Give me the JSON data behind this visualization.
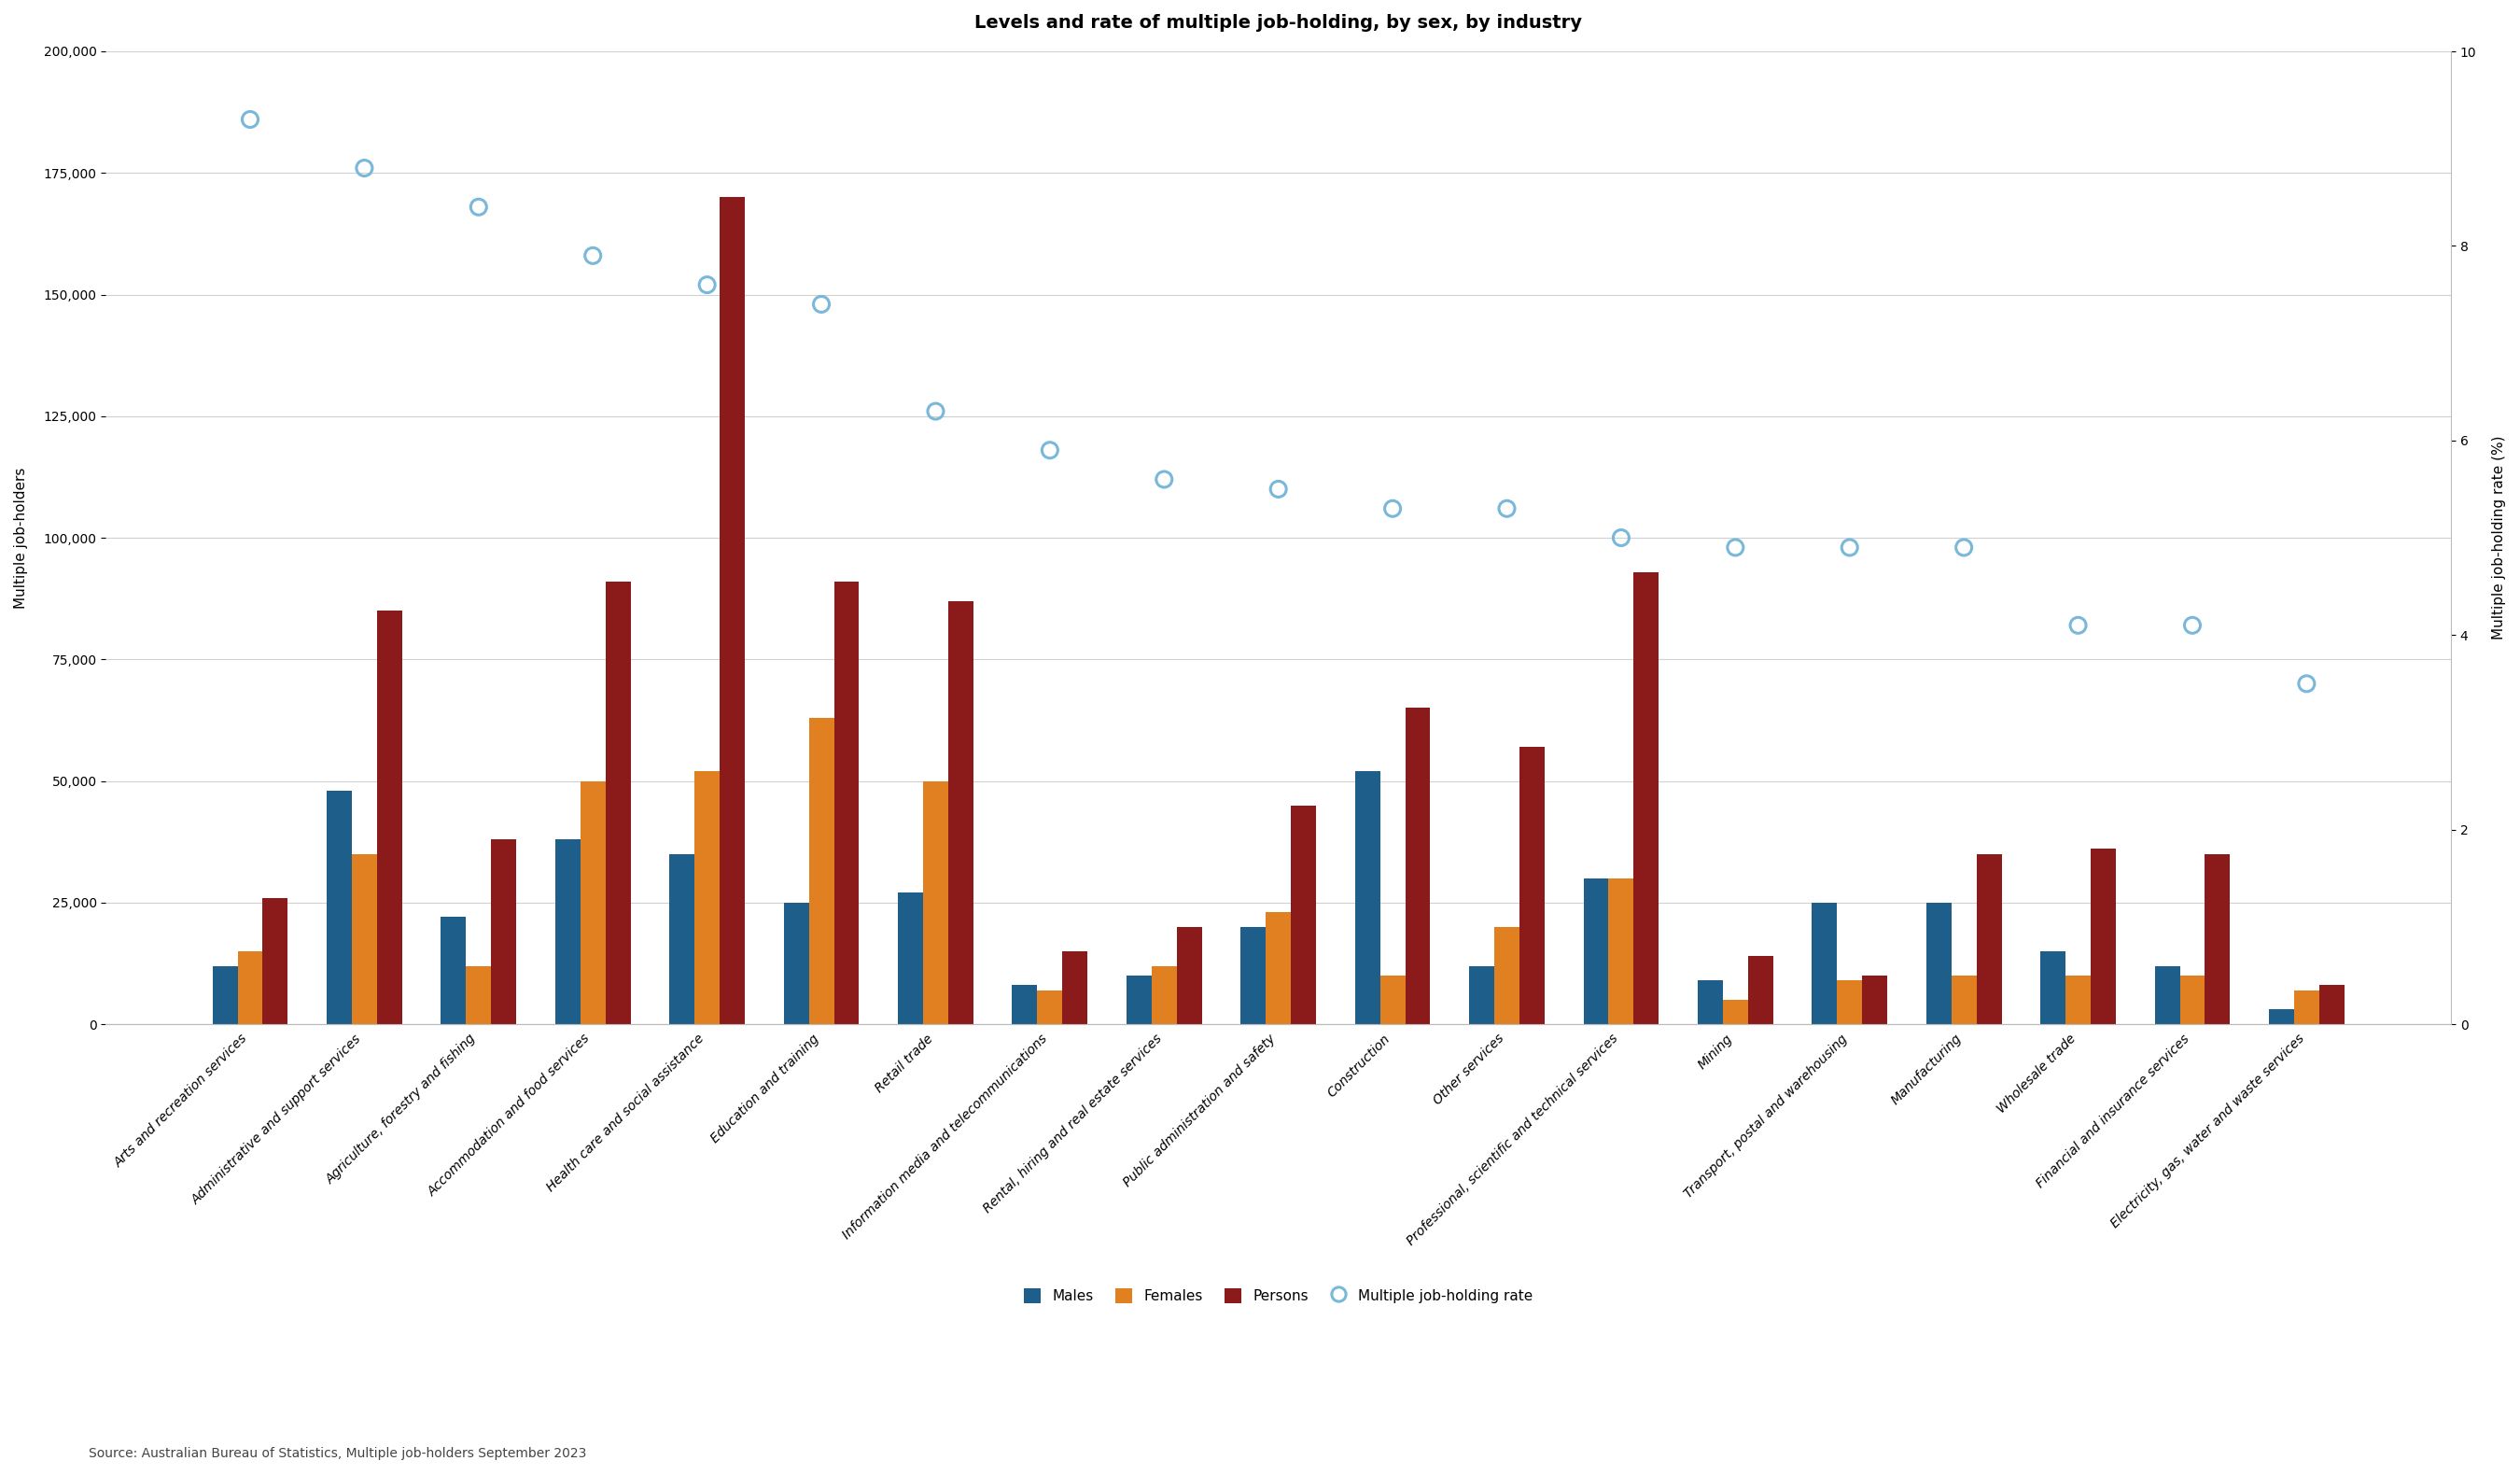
{
  "title": "Levels and rate of multiple job-holding, by sex, by industry",
  "categories": [
    "Arts and recreation services",
    "Administrative and support services",
    "Agriculture, forestry and fishing",
    "Accommodation and food services",
    "Health care and social assistance",
    "Education and training",
    "Retail trade",
    "Information media and telecommunications",
    "Rental, hiring and real estate services",
    "Public administration and safety",
    "Construction",
    "Other services",
    "Professional, scientific and technical services",
    "Mining",
    "Transport, postal and warehousing",
    "Manufacturing",
    "Wholesale trade",
    "Financial and insurance services",
    "Electricity, gas, water and waste services"
  ],
  "males": [
    12000,
    48000,
    22000,
    38000,
    35000,
    25000,
    27000,
    8000,
    10000,
    20000,
    52000,
    12000,
    30000,
    9000,
    25000,
    25000,
    15000,
    12000,
    3000
  ],
  "females": [
    15000,
    35000,
    12000,
    50000,
    52000,
    63000,
    50000,
    7000,
    12000,
    23000,
    10000,
    20000,
    30000,
    5000,
    9000,
    10000,
    10000,
    10000,
    7000
  ],
  "persons": [
    26000,
    85000,
    38000,
    91000,
    170000,
    91000,
    87000,
    15000,
    20000,
    45000,
    65000,
    57000,
    93000,
    14000,
    10000,
    35000,
    36000,
    35000,
    8000
  ],
  "rate": [
    9.3,
    8.8,
    8.4,
    7.9,
    7.6,
    7.4,
    6.3,
    5.9,
    5.6,
    5.5,
    5.3,
    5.3,
    5.0,
    4.9,
    4.9,
    4.9,
    4.1,
    4.1,
    3.5
  ],
  "ylabel_left": "Multiple job-holders",
  "ylabel_right": "Multiple job-holding rate (%)",
  "ylim_left": [
    0,
    200000
  ],
  "ylim_right": [
    0,
    10
  ],
  "source": "Source: Australian Bureau of Statistics, Multiple job-holders September 2023",
  "color_males": "#1d5f8a",
  "color_females": "#e08020",
  "color_persons": "#8b1a1a",
  "color_rate": "#7ab8d9",
  "color_bg": "#ffffff",
  "color_grid": "#d0d0d0",
  "bar_width": 0.22,
  "legend_labels": [
    "Males",
    "Females",
    "Persons",
    "Multiple job-holding rate"
  ],
  "title_fontsize": 14,
  "axis_label_fontsize": 11,
  "tick_fontsize": 10,
  "source_fontsize": 10
}
